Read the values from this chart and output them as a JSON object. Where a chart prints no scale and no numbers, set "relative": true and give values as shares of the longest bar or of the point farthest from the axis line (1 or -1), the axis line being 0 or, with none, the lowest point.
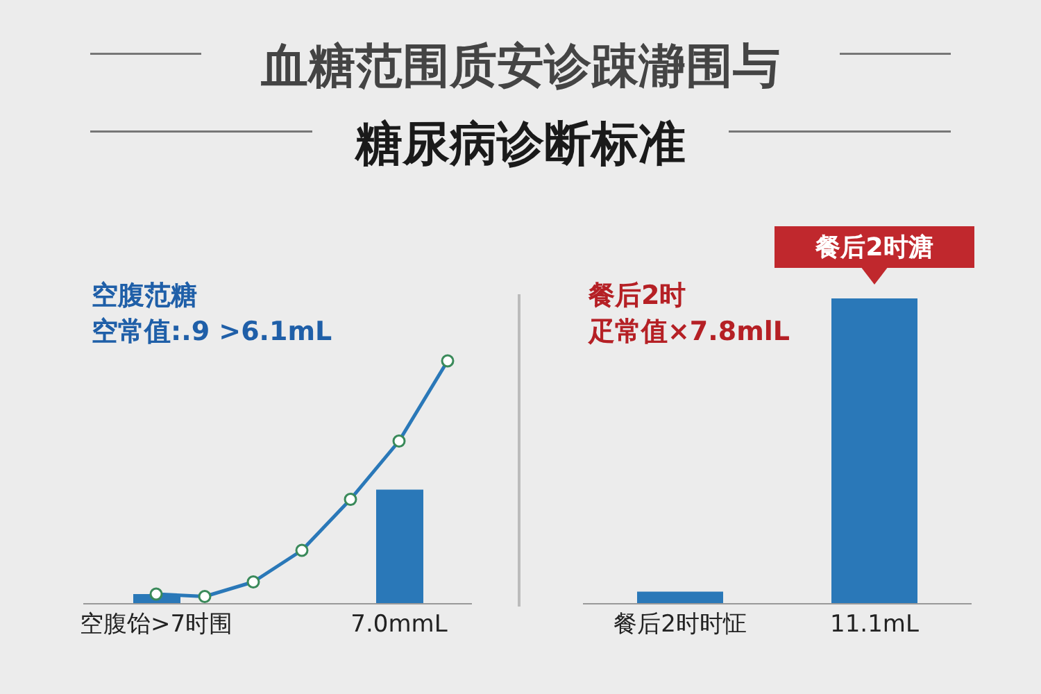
{
  "chart_data": [
    {
      "type": "bar",
      "title": "血糖范围质安诊踈瀞围与",
      "subtitle": "糖尿病诊断标准",
      "annotations": [
        "空腹范糖",
        "空常值:.9 >6.1mL"
      ],
      "categories": [
        null,
        "空腹饴>7时围",
        null,
        null,
        null,
        null,
        "7.0mmL",
        null
      ],
      "relative": true,
      "marker": "circle",
      "series": [
        {
          "type": "bar",
          "color": "#2a78b8",
          "values": [
            null,
            0.04,
            null,
            null,
            null,
            null,
            0.47,
            null
          ]
        },
        {
          "type": "line",
          "color": "#2a78b8",
          "values": [
            null,
            0.04,
            0.03,
            0.09,
            0.22,
            0.43,
            0.67,
            1
          ]
        }
      ]
    },
    {
      "type": "bar",
      "categories": [
        "餐后2时时怔",
        "11.1mL"
      ],
      "relative": true,
      "values": [
        0.04,
        1
      ],
      "color": "#2a78b8",
      "annotations": [
        "餐后2时",
        "疋常值×7.8mlL",
        {
          "text": "餐后2时溏",
          "x": "11.1mL",
          "y": 1
        }
      ]
    }
  ]
}
